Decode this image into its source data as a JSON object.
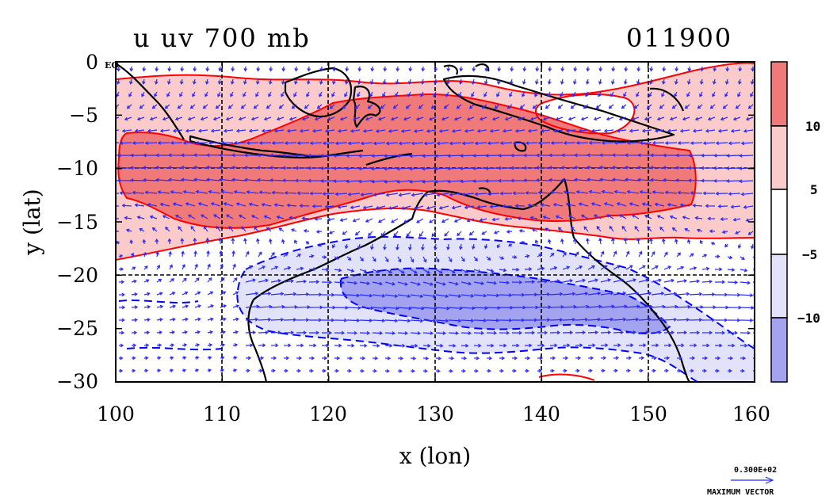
{
  "chart_data": {
    "type": "contour",
    "title": "u uv 700 mb",
    "time_label": "011900",
    "xlabel": "x (lon)",
    "ylabel": "y (lat)",
    "xlim": [
      100,
      160
    ],
    "ylim": [
      -30,
      0
    ],
    "x_ticks": [
      100,
      110,
      120,
      130,
      140,
      150,
      160
    ],
    "y_ticks": [
      0,
      -5,
      -10,
      -15,
      -20,
      -25,
      -30
    ],
    "x_tick_labels": [
      "100",
      "110",
      "120",
      "130",
      "140",
      "150",
      "160"
    ],
    "y_tick_labels": [
      "0",
      "−5",
      "−10",
      "−15",
      "−20",
      "−25",
      "−30"
    ],
    "equator_label": "EQ",
    "grid": true,
    "contour_levels": [
      -10,
      -5,
      5,
      10
    ],
    "colorbar": {
      "labels": [
        "10",
        "5",
        "−5",
        "−10"
      ],
      "bands": [
        {
          "range": "> 10",
          "color": "#f07a7a"
        },
        {
          "range": "5 to 10",
          "color": "#fbcaca"
        },
        {
          "range": "-5 to 5",
          "color": "#ffffff"
        },
        {
          "range": "-10 to -5",
          "color": "#e2e2fb"
        },
        {
          "range": "< -10",
          "color": "#a3a3f0"
        }
      ]
    },
    "fields": [
      {
        "name": "strong easterly jet (u > 10)",
        "region": "lon 101-153, lat -4 to -15",
        "sign": "positive"
      },
      {
        "name": "easterly band (u > 5)",
        "region": "lon 100-160, lat 0 to -18",
        "sign": "positive"
      },
      {
        "name": "westerly (u < -5)",
        "region": "lon 112-160, lat -17 to -30",
        "sign": "negative"
      },
      {
        "name": "strong westerly (u < -10)",
        "region": "lon 123-152, lat -20 to -26",
        "sign": "negative"
      }
    ],
    "vectors": {
      "name": "uv wind vectors",
      "reference_label": "0.300E+02",
      "reference_caption": "MAXIMUM VECTOR",
      "reference_value": 30
    },
    "colors": {
      "positive_line": "#ff0000",
      "negative_line": "#0000ff",
      "vector": "#2a2aff",
      "coast": "#000000"
    }
  }
}
